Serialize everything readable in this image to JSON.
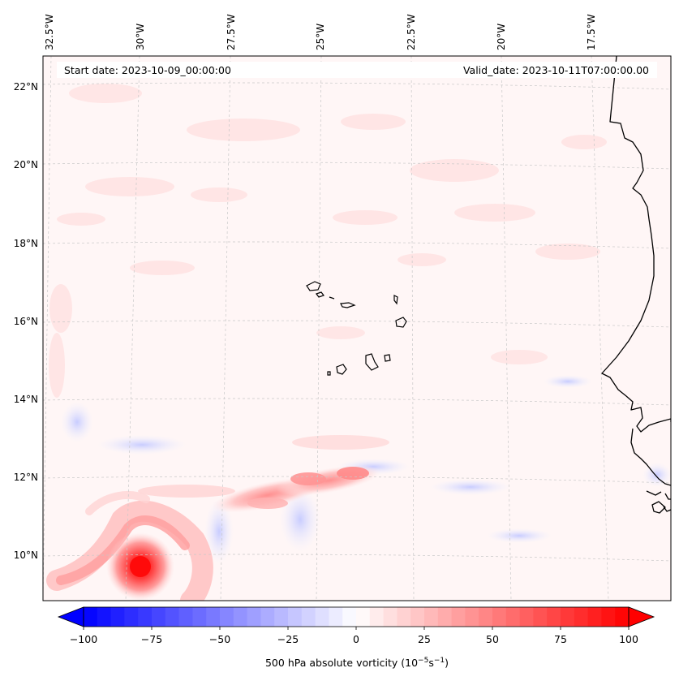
{
  "header": {
    "start_date": "Start date: 2023-10-09_00:00:00",
    "valid_date": "Valid_date: 2023-10-11T07:00:00.00"
  },
  "map": {
    "lon_labels": [
      "32.5°W",
      "30°W",
      "27.5°W",
      "25°W",
      "22.5°W",
      "20°W",
      "17.5°W"
    ],
    "lat_labels": [
      "22°N",
      "20°N",
      "18°N",
      "16°N",
      "14°N",
      "12°N",
      "10°N"
    ],
    "features": [
      "Cabo Verde islands",
      "West African coastline"
    ]
  },
  "colorbar": {
    "ticks": [
      "−100",
      "−75",
      "−50",
      "−25",
      "0",
      "25",
      "50",
      "75",
      "100"
    ],
    "label_main": "500 hPa absolute vorticity (10",
    "label_exp1": "−5",
    "label_unit": "s",
    "label_exp2": "−1",
    "label_end": ")",
    "min": -100,
    "max": 100,
    "color_low": "#0000ff",
    "color_mid": "#ffffff",
    "color_high": "#ff0000"
  }
}
